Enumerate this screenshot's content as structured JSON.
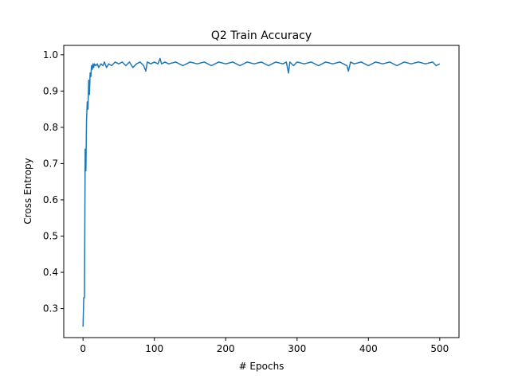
{
  "chart_data": {
    "type": "line",
    "title": "Q2 Train Accuracy",
    "xlabel": "# Epochs",
    "ylabel": "Cross Entropy",
    "xlim": [
      -27,
      527
    ],
    "ylim": [
      0.22,
      1.026
    ],
    "x_ticks": [
      0,
      100,
      200,
      300,
      400,
      500
    ],
    "y_ticks": [
      0.3,
      0.4,
      0.5,
      0.6,
      0.7,
      0.8,
      0.9,
      1.0
    ],
    "x_tick_labels": [
      "0",
      "100",
      "200",
      "300",
      "400",
      "500"
    ],
    "y_tick_labels": [
      "0.3",
      "0.4",
      "0.5",
      "0.6",
      "0.7",
      "0.8",
      "0.9",
      "1.0"
    ],
    "grid": false,
    "legend": "none",
    "series": [
      {
        "color": "#1f77b4",
        "x": [
          0,
          1,
          2,
          3,
          4,
          5,
          6,
          7,
          8,
          9,
          10,
          11,
          12,
          13,
          14,
          15,
          16,
          18,
          20,
          22,
          25,
          28,
          30,
          33,
          36,
          40,
          45,
          50,
          55,
          60,
          65,
          70,
          75,
          80,
          85,
          88,
          90,
          95,
          100,
          105,
          108,
          110,
          115,
          120,
          130,
          140,
          150,
          160,
          170,
          180,
          190,
          200,
          210,
          220,
          230,
          240,
          250,
          260,
          270,
          280,
          285,
          288,
          290,
          295,
          300,
          310,
          320,
          330,
          340,
          350,
          360,
          370,
          372,
          375,
          380,
          390,
          400,
          410,
          420,
          430,
          440,
          450,
          460,
          470,
          480,
          490,
          495,
          500
        ],
        "y": [
          0.25,
          0.33,
          0.33,
          0.74,
          0.68,
          0.82,
          0.87,
          0.85,
          0.93,
          0.89,
          0.95,
          0.94,
          0.97,
          0.96,
          0.975,
          0.965,
          0.975,
          0.97,
          0.975,
          0.965,
          0.975,
          0.97,
          0.98,
          0.965,
          0.975,
          0.97,
          0.98,
          0.975,
          0.98,
          0.97,
          0.98,
          0.965,
          0.975,
          0.98,
          0.97,
          0.955,
          0.98,
          0.975,
          0.98,
          0.975,
          0.99,
          0.975,
          0.98,
          0.975,
          0.98,
          0.97,
          0.98,
          0.975,
          0.98,
          0.97,
          0.98,
          0.975,
          0.98,
          0.97,
          0.98,
          0.975,
          0.98,
          0.97,
          0.98,
          0.975,
          0.98,
          0.95,
          0.98,
          0.97,
          0.98,
          0.975,
          0.98,
          0.97,
          0.98,
          0.975,
          0.98,
          0.97,
          0.955,
          0.98,
          0.975,
          0.98,
          0.97,
          0.98,
          0.975,
          0.98,
          0.97,
          0.98,
          0.975,
          0.98,
          0.975,
          0.98,
          0.97,
          0.975
        ]
      }
    ]
  }
}
